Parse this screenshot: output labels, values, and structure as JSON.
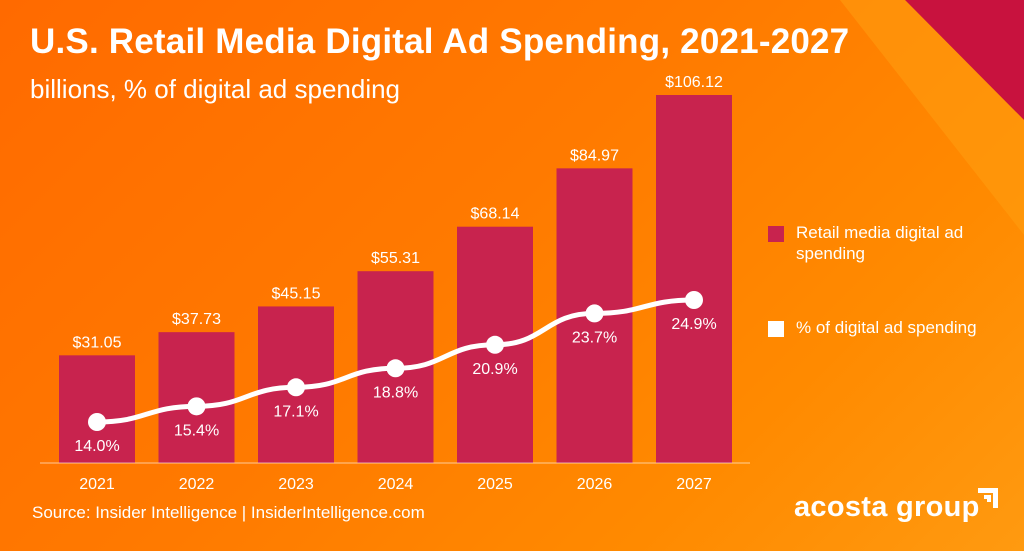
{
  "title": "U.S. Retail Media Digital Ad Spending, 2021-2027",
  "subtitle": "billions, % of digital ad spending",
  "legend": {
    "bars": "Retail media digital ad spending",
    "line": "% of digital ad spending"
  },
  "source": "Source: Insider Intelligence | InsiderIntelligence.com",
  "brand": "acosta group",
  "colors": {
    "bar": "#c8234e",
    "line": "#ffffff",
    "background": "#ff7a00"
  },
  "chart_data": {
    "type": "bar",
    "categories": [
      "2021",
      "2022",
      "2023",
      "2024",
      "2025",
      "2026",
      "2027"
    ],
    "series": [
      {
        "name": "Retail media digital ad spending",
        "type": "bar",
        "values": [
          31.05,
          37.73,
          45.15,
          55.31,
          68.14,
          84.97,
          106.12
        ],
        "labels": [
          "$31.05",
          "$37.73",
          "$45.15",
          "$55.31",
          "$68.14",
          "$84.97",
          "$106.12"
        ]
      },
      {
        "name": "% of digital ad spending",
        "type": "line",
        "values": [
          14.0,
          15.4,
          17.1,
          18.8,
          20.9,
          23.7,
          24.9
        ],
        "labels": [
          "14.0%",
          "15.4%",
          "17.1%",
          "18.8%",
          "20.9%",
          "23.7%",
          "24.9%"
        ]
      }
    ],
    "ylim": [
      0,
      106.12
    ],
    "grid": false,
    "legend_position": "right"
  }
}
